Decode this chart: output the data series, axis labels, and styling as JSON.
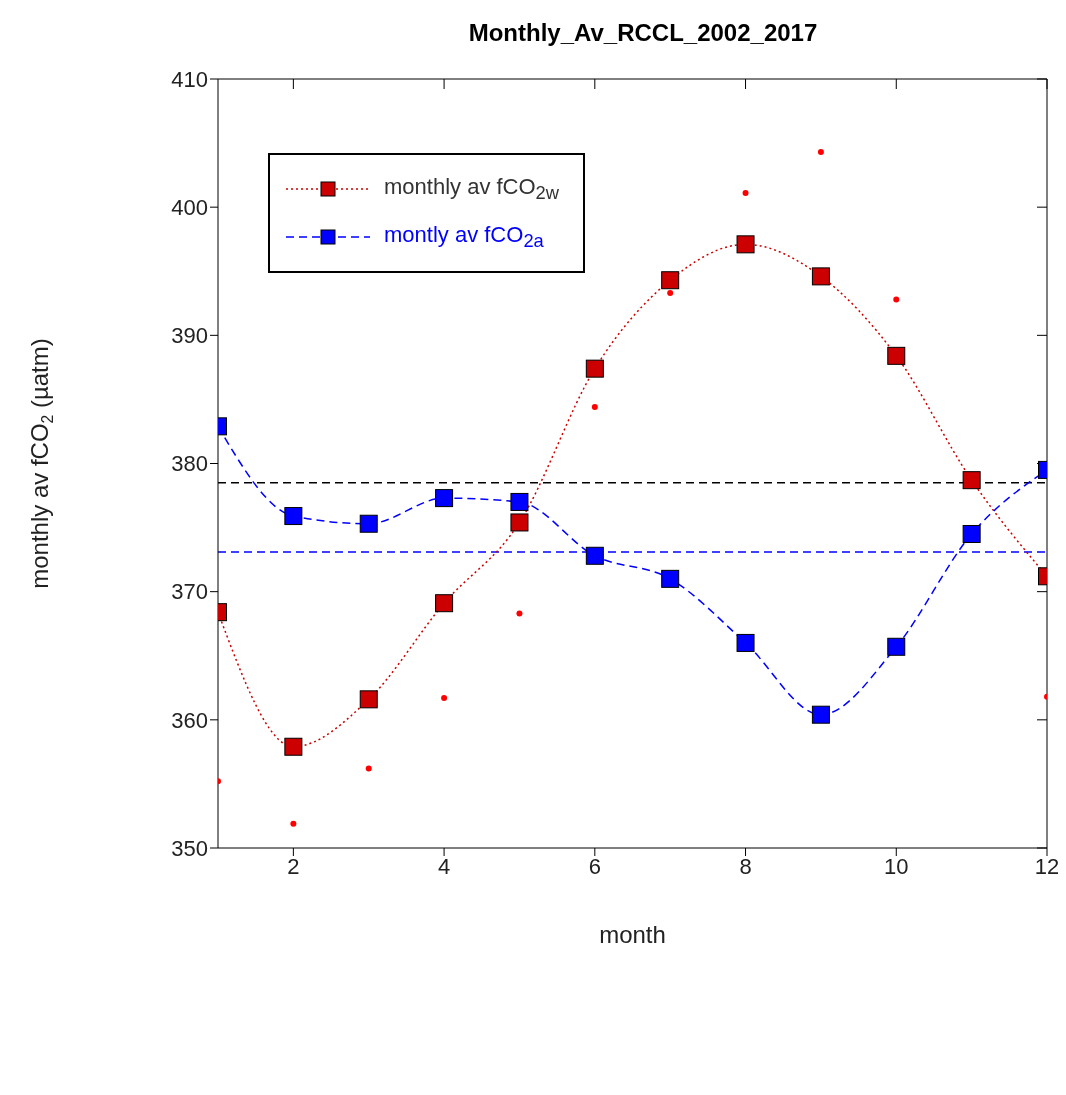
{
  "chart_data": {
    "type": "line",
    "title": "Monthly_Av_RCCL_2002_2017",
    "xlabel": "month",
    "ylabel": "monthly av fCO$_{2}$ (µatm)",
    "x": [
      1,
      2,
      3,
      4,
      5,
      6,
      7,
      8,
      9,
      10,
      11,
      12
    ],
    "series": [
      {
        "name": "monthly av fCO$_{2w}$",
        "color": "#cc0000",
        "line_style": "dotted",
        "marker": "square",
        "values": [
          368.4,
          357.9,
          361.6,
          369.1,
          375.4,
          387.4,
          394.3,
          397.1,
          394.6,
          388.4,
          378.7,
          371.2
        ]
      },
      {
        "name": "montly av fCO$_{2a}$",
        "color": "#0000ff",
        "line_style": "dashed",
        "marker": "square",
        "values": [
          382.9,
          375.9,
          375.3,
          377.3,
          377.0,
          372.8,
          371.0,
          366.0,
          360.4,
          365.7,
          374.5,
          379.5
        ]
      },
      {
        "type": "scatter",
        "color": "#ff0000",
        "marker": "circle",
        "values": [
          355.2,
          351.9,
          356.2,
          361.7,
          368.3,
          384.4,
          393.3,
          401.1,
          404.3,
          392.8,
          null,
          361.8
        ]
      }
    ],
    "ref_lines": [
      {
        "axis": "y",
        "value": 378.5,
        "color": "#000000",
        "line_style": "dashed"
      },
      {
        "axis": "y",
        "value": 373.1,
        "color": "#0000ff",
        "line_style": "dashed"
      }
    ],
    "xlim": [
      1,
      12
    ],
    "xticks": [
      2,
      4,
      6,
      8,
      10,
      12
    ],
    "ylim": [
      350,
      410
    ],
    "yticks": [
      350,
      360,
      370,
      380,
      390,
      400,
      410
    ],
    "grid": false,
    "legend": "top left"
  }
}
